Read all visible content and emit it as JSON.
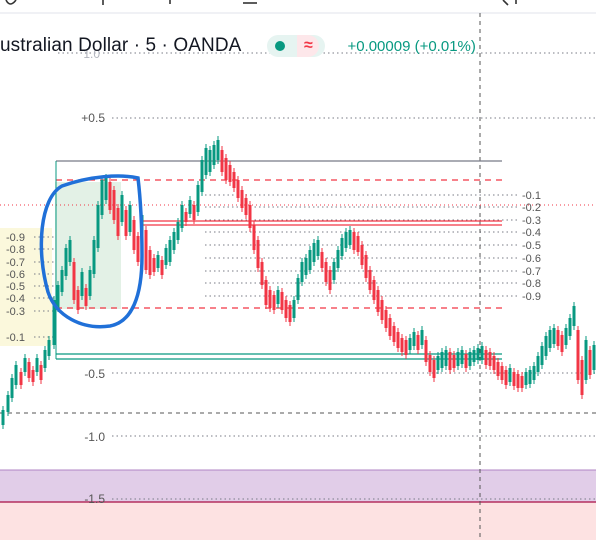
{
  "header": {
    "symbol_title": "ustralian Dollar · 5 · OANDA",
    "price_change": "+0.00009 (+0.01%)",
    "wave_symbol": "≈"
  },
  "colors": {
    "up": "#089981",
    "down": "#f23645",
    "fib_gray": "#787b86",
    "ellipse": "#2962ff",
    "zone_green": "#e3f1e6",
    "zone_yellow": "#fbf8dc",
    "zone_purple": "#e1cde8",
    "zone_pink": "#fde2e2"
  },
  "axis_labels": {
    "top_cut": "1.0",
    "p05": "+0.5",
    "m05": "-0.5",
    "m10": "-1.0",
    "m15": "-1.5"
  },
  "fib_right_labels": [
    "-0.1",
    "-0.2",
    "-0.3",
    "-0.4",
    "-0.5",
    "-0.6",
    "-0.7",
    "-0.8",
    "-0.9"
  ],
  "fib_left_labels": [
    "-0.9",
    "-0.8",
    "-0.7",
    "-0.6",
    "-0.5",
    "-0.4",
    "-0.3",
    "-0.1"
  ]
}
